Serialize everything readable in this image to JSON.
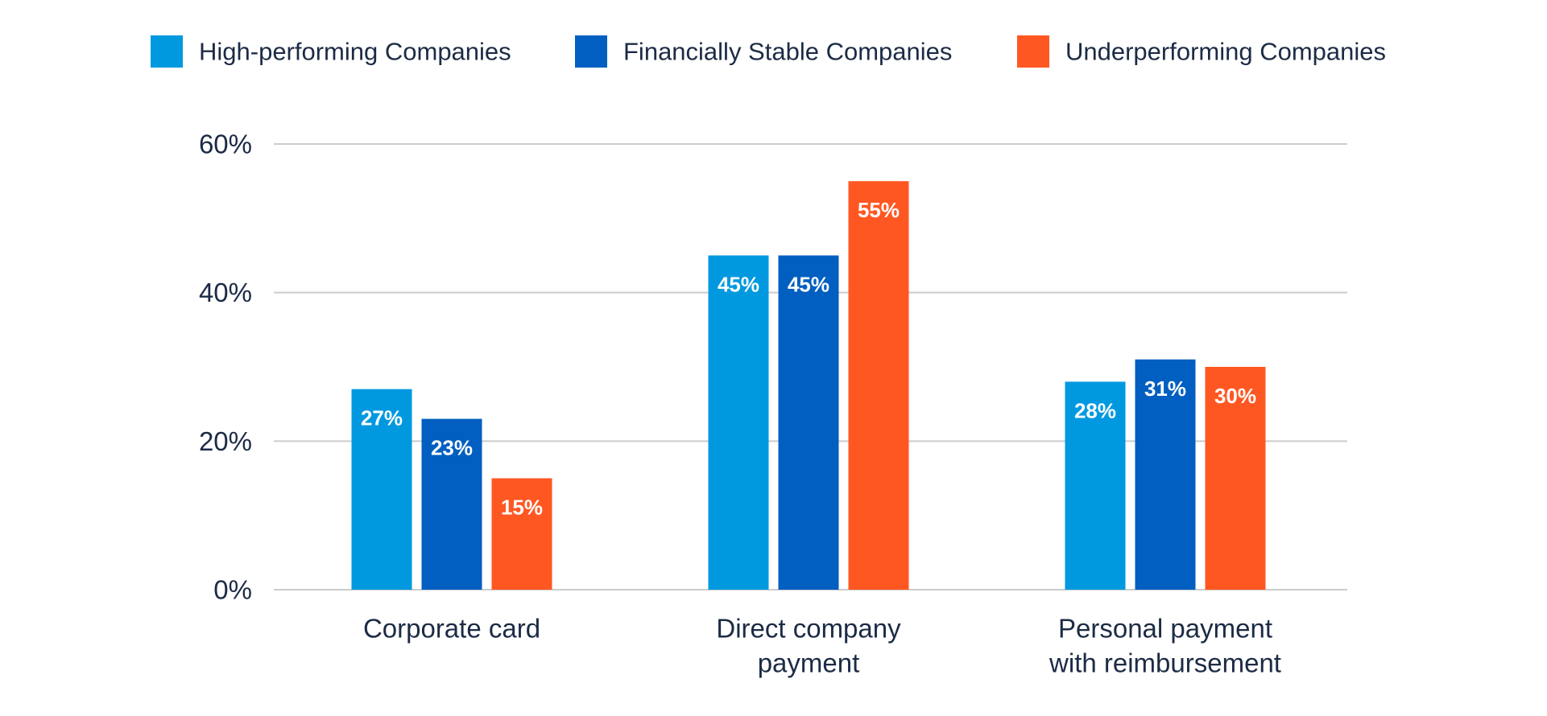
{
  "chart_data": {
    "type": "bar",
    "categories": [
      [
        "Corporate card"
      ],
      [
        "Direct company",
        "payment"
      ],
      [
        "Personal payment",
        "with reimbursement"
      ]
    ],
    "series": [
      {
        "name": "High-performing Companies",
        "color": "#0099e0",
        "values": [
          27,
          45,
          28
        ],
        "labels": [
          "27%",
          "45%",
          "28%"
        ]
      },
      {
        "name": "Financially Stable Companies",
        "color": "#005fc0",
        "values": [
          23,
          45,
          31
        ],
        "labels": [
          "23%",
          "45%",
          "31%"
        ]
      },
      {
        "name": "Underperforming Companies",
        "color": "#ff5722",
        "values": [
          15,
          55,
          30
        ],
        "labels": [
          "15%",
          "55%",
          "30%"
        ]
      }
    ],
    "yticks": [
      0,
      20,
      40,
      60
    ],
    "ytick_labels": [
      "0%",
      "20%",
      "40%",
      "60%"
    ],
    "ylim": [
      0,
      60
    ],
    "grid": true,
    "legend_position": "top"
  }
}
